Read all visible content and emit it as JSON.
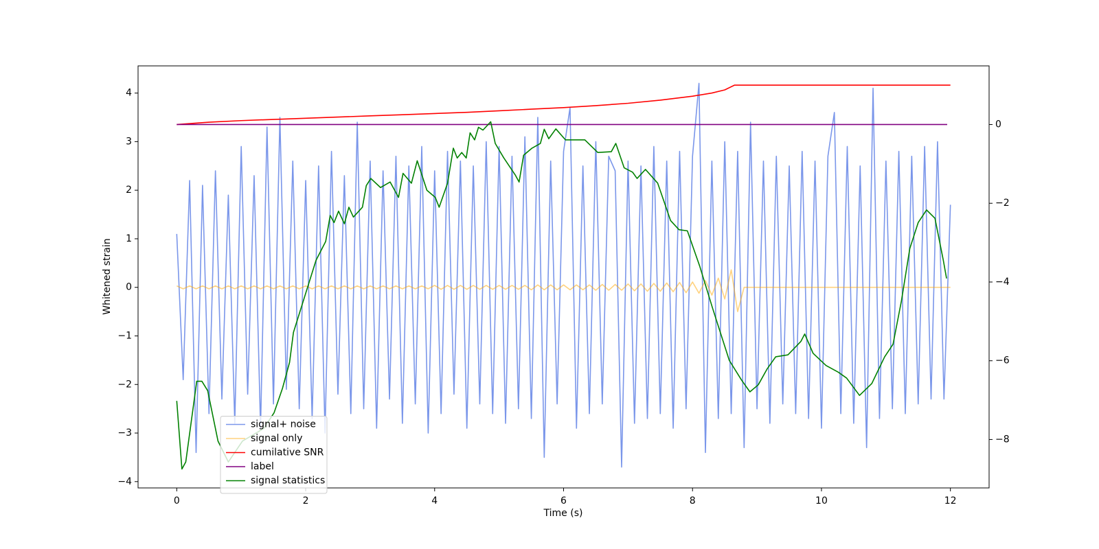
{
  "chart_data": {
    "type": "line",
    "xlabel": "Time (s)",
    "ylabel": "Whitened strain",
    "xlim": [
      -0.6,
      12.6
    ],
    "xticks": [
      0,
      2,
      4,
      6,
      8,
      10,
      12
    ],
    "ylim": [
      -4.13,
      4.56
    ],
    "yticks": [
      {
        "value": -4,
        "label": "−4"
      },
      {
        "value": -3,
        "label": "−3"
      },
      {
        "value": -2,
        "label": "−2"
      },
      {
        "value": -1,
        "label": "−1"
      },
      0,
      1,
      2,
      3,
      4
    ],
    "y2lim": [
      -9.23,
      1.49
    ],
    "y2ticks": [
      {
        "value": -8,
        "label": "−8"
      },
      {
        "value": -6,
        "label": "−6"
      },
      {
        "value": -4,
        "label": "−4"
      },
      {
        "value": -2,
        "label": "−2"
      },
      0
    ],
    "legend": "lower left",
    "series": [
      {
        "name": "signal+ noise",
        "color": "#4169e1",
        "opacity": 0.7,
        "x": [
          0,
          0.1,
          0.2,
          0.3,
          0.4,
          0.5,
          0.6,
          0.7,
          0.8,
          0.9,
          1,
          1.1,
          1.2,
          1.3,
          1.4,
          1.5,
          1.6,
          1.7,
          1.8,
          1.9,
          2,
          2.1,
          2.2,
          2.3,
          2.4,
          2.5,
          2.6,
          2.7,
          2.8,
          2.9,
          3,
          3.1,
          3.2,
          3.3,
          3.4,
          3.5,
          3.6,
          3.7,
          3.8,
          3.9,
          4,
          4.1,
          4.2,
          4.3,
          4.4,
          4.5,
          4.6,
          4.7,
          4.8,
          4.9,
          5,
          5.1,
          5.2,
          5.3,
          5.4,
          5.5,
          5.6,
          5.7,
          5.8,
          5.9,
          6,
          6.1,
          6.2,
          6.3,
          6.4,
          6.5,
          6.6,
          6.7,
          6.8,
          6.9,
          7,
          7.1,
          7.2,
          7.3,
          7.4,
          7.5,
          7.6,
          7.7,
          7.8,
          7.9,
          8,
          8.1,
          8.2,
          8.3,
          8.4,
          8.5,
          8.6,
          8.7,
          8.8,
          8.9,
          9,
          9.1,
          9.2,
          9.3,
          9.4,
          9.5,
          9.6,
          9.7,
          9.8,
          9.9,
          10,
          10.1,
          10.2,
          10.3,
          10.4,
          10.5,
          10.6,
          10.7,
          10.8,
          10.9,
          11,
          11.1,
          11.2,
          11.3,
          11.4,
          11.5,
          11.6,
          11.7,
          11.8,
          11.9,
          12
        ],
        "values": [
          1.1,
          -1.9,
          2.2,
          -3.4,
          2.1,
          -2.6,
          2.4,
          -2.3,
          1.9,
          -2.8,
          2.9,
          -2.2,
          2.3,
          -2.9,
          3.3,
          -2.4,
          3.5,
          -2.1,
          2.6,
          -2.5,
          2.2,
          -2.7,
          2.5,
          -3.0,
          2.8,
          -2.2,
          2.3,
          -2.6,
          3.4,
          -2.5,
          2.6,
          -2.9,
          2.4,
          -2.3,
          2.7,
          -2.8,
          2.5,
          -2.4,
          2.9,
          -3.0,
          2.4,
          -2.6,
          2.8,
          -2.2,
          2.6,
          -2.9,
          2.5,
          -2.4,
          3.0,
          -2.6,
          2.9,
          -2.8,
          2.7,
          -2.5,
          3.1,
          -2.7,
          3.5,
          -3.5,
          2.6,
          -2.4,
          2.8,
          3.7,
          -2.9,
          2.5,
          -2.6,
          3.0,
          -2.4,
          2.7,
          2.4,
          -3.7,
          2.6,
          -2.8,
          2.5,
          -2.7,
          2.9,
          -2.6,
          2.6,
          -2.9,
          2.8,
          -2.5,
          2.7,
          4.2,
          -3.4,
          2.6,
          -2.7,
          3.0,
          -2.6,
          2.8,
          -3.3,
          3.4,
          -2.5,
          2.6,
          -2.8,
          2.7,
          -2.4,
          2.5,
          -2.6,
          2.8,
          -2.7,
          2.6,
          -2.9,
          2.7,
          3.6,
          -2.6,
          2.9,
          -2.8,
          2.5,
          -3.3,
          4.1,
          -2.7,
          2.6,
          -2.5,
          2.8,
          -2.6,
          2.7,
          -2.4,
          2.9,
          -2.3,
          3.0,
          -2.3,
          1.7
        ]
      },
      {
        "name": "signal only",
        "color": "#ffa500",
        "opacity": 0.5,
        "x": [
          0,
          0.1,
          0.2,
          0.3,
          0.4,
          0.5,
          0.6,
          0.7,
          0.8,
          0.9,
          1,
          1.1,
          1.2,
          1.3,
          1.4,
          1.5,
          1.6,
          1.7,
          1.8,
          1.9,
          2,
          2.1,
          2.2,
          2.3,
          2.4,
          2.5,
          2.6,
          2.7,
          2.8,
          2.9,
          3,
          3.1,
          3.2,
          3.3,
          3.4,
          3.5,
          3.6,
          3.7,
          3.8,
          3.9,
          4,
          4.1,
          4.2,
          4.3,
          4.4,
          4.5,
          4.6,
          4.7,
          4.8,
          4.9,
          5,
          5.1,
          5.2,
          5.3,
          5.4,
          5.5,
          5.6,
          5.7,
          5.8,
          5.9,
          6,
          6.1,
          6.2,
          6.3,
          6.4,
          6.5,
          6.6,
          6.7,
          6.8,
          6.9,
          7,
          7.1,
          7.2,
          7.3,
          7.4,
          7.5,
          7.6,
          7.7,
          7.8,
          7.9,
          8,
          8.1,
          8.2,
          8.3,
          8.4,
          8.5,
          8.6,
          8.7,
          8.8,
          8.9,
          9,
          9.1,
          9.2,
          9.3,
          9.4,
          9.5,
          9.6,
          9.7,
          9.8,
          9.9,
          10,
          10.1,
          10.2,
          10.3,
          10.4,
          10.5,
          10.6,
          10.7,
          10.8,
          10.9,
          11,
          11.1,
          11.2,
          11.3,
          11.4,
          11.5,
          11.6,
          11.7,
          11.8,
          11.9,
          12
        ],
        "values": [
          0.03,
          -0.03,
          0.03,
          -0.03,
          0.03,
          -0.03,
          0.03,
          -0.03,
          0.03,
          -0.03,
          0.03,
          -0.03,
          0.03,
          -0.03,
          0.03,
          -0.03,
          0.03,
          -0.03,
          0.03,
          -0.03,
          0.03,
          -0.03,
          0.03,
          -0.03,
          0.03,
          -0.03,
          0.03,
          -0.03,
          0.03,
          -0.03,
          0.03,
          -0.03,
          0.03,
          -0.03,
          0.03,
          -0.03,
          0.03,
          -0.03,
          0.03,
          -0.03,
          0.04,
          -0.04,
          0.04,
          -0.04,
          0.04,
          -0.04,
          0.04,
          -0.04,
          0.04,
          -0.04,
          0.04,
          -0.04,
          0.04,
          -0.04,
          0.04,
          -0.05,
          0.05,
          -0.05,
          0.05,
          -0.05,
          0.05,
          -0.05,
          0.05,
          -0.05,
          0.05,
          -0.06,
          0.06,
          -0.06,
          0.06,
          -0.06,
          0.07,
          -0.07,
          0.07,
          -0.08,
          0.08,
          -0.08,
          0.09,
          -0.09,
          0.1,
          -0.11,
          0.11,
          -0.12,
          0.14,
          -0.16,
          0.19,
          -0.24,
          0.36,
          -0.5,
          0,
          0,
          0,
          0,
          0,
          0,
          0,
          0,
          0,
          0,
          0,
          0,
          0,
          0,
          0,
          0,
          0,
          0,
          0,
          0,
          0,
          0,
          0,
          0,
          0,
          0,
          0,
          0,
          0,
          0,
          0,
          0,
          0
        ]
      },
      {
        "name": "cumilative SNR",
        "color": "#ff0000",
        "axis": "y2",
        "x": [
          0,
          0.5,
          1,
          1.5,
          2,
          2.5,
          3,
          3.5,
          4,
          4.5,
          5,
          5.5,
          6,
          6.5,
          7,
          7.5,
          8,
          8.3,
          8.5,
          8.65,
          9,
          10,
          11,
          12
        ],
        "values": [
          0,
          0.06,
          0.1,
          0.13,
          0.16,
          0.19,
          0.22,
          0.25,
          0.28,
          0.31,
          0.35,
          0.39,
          0.43,
          0.48,
          0.54,
          0.62,
          0.72,
          0.8,
          0.88,
          1.0,
          1.0,
          1.0,
          1.0,
          1.0
        ]
      },
      {
        "name": "label",
        "color": "#800080",
        "axis": "y2",
        "x": [
          0,
          11.95
        ],
        "values": [
          0,
          0
        ]
      },
      {
        "name": "signal statistics",
        "color": "#008000",
        "axis": "y2",
        "x": [
          0,
          0.08,
          0.14,
          0.31,
          0.39,
          0.48,
          0.64,
          0.8,
          1.02,
          1.35,
          1.51,
          1.64,
          1.75,
          1.81,
          1.98,
          2.16,
          2.31,
          2.38,
          2.44,
          2.51,
          2.6,
          2.67,
          2.74,
          2.88,
          2.94,
          3.01,
          3.16,
          3.31,
          3.44,
          3.51,
          3.64,
          3.73,
          3.88,
          4.01,
          4.07,
          4.2,
          4.29,
          4.35,
          4.42,
          4.49,
          4.55,
          4.62,
          4.68,
          4.75,
          4.87,
          4.94,
          5.07,
          5.25,
          5.31,
          5.38,
          5.51,
          5.64,
          5.7,
          5.77,
          5.88,
          6.03,
          6.16,
          6.33,
          6.53,
          6.74,
          6.81,
          6.94,
          7.07,
          7.14,
          7.27,
          7.46,
          7.66,
          7.79,
          7.92,
          8.11,
          8.31,
          8.57,
          8.76,
          8.89,
          9.02,
          9.16,
          9.29,
          9.48,
          9.68,
          9.74,
          9.87,
          10.07,
          10.26,
          10.39,
          10.59,
          10.78,
          10.98,
          11.11,
          11.24,
          11.37,
          11.5,
          11.63,
          11.76,
          11.89,
          11.94
        ],
        "values": [
          -7.02,
          -8.75,
          -8.57,
          -6.52,
          -6.52,
          -6.76,
          -8.04,
          -8.57,
          -8.04,
          -7.72,
          -7.32,
          -6.7,
          -6.04,
          -5.28,
          -4.39,
          -3.45,
          -2.97,
          -2.31,
          -2.49,
          -2.2,
          -2.52,
          -2.1,
          -2.35,
          -2.1,
          -1.55,
          -1.37,
          -1.6,
          -1.46,
          -1.85,
          -1.24,
          -1.49,
          -0.92,
          -1.67,
          -1.85,
          -2.1,
          -1.49,
          -0.6,
          -0.85,
          -0.71,
          -0.85,
          -0.21,
          -0.39,
          -0.07,
          -0.14,
          0.07,
          -0.48,
          -0.84,
          -1.28,
          -1.46,
          -0.78,
          -0.6,
          -0.48,
          -0.12,
          -0.36,
          -0.11,
          -0.39,
          -0.39,
          -0.39,
          -0.71,
          -0.69,
          -0.48,
          -1.1,
          -1.21,
          -1.37,
          -1.14,
          -1.49,
          -2.44,
          -2.67,
          -2.7,
          -3.59,
          -4.66,
          -5.99,
          -6.49,
          -6.79,
          -6.61,
          -6.2,
          -5.9,
          -5.85,
          -5.51,
          -5.32,
          -5.81,
          -6.12,
          -6.29,
          -6.44,
          -6.88,
          -6.58,
          -5.9,
          -5.58,
          -4.48,
          -3.15,
          -2.49,
          -2.17,
          -2.38,
          -3.45,
          -3.91
        ]
      }
    ]
  }
}
